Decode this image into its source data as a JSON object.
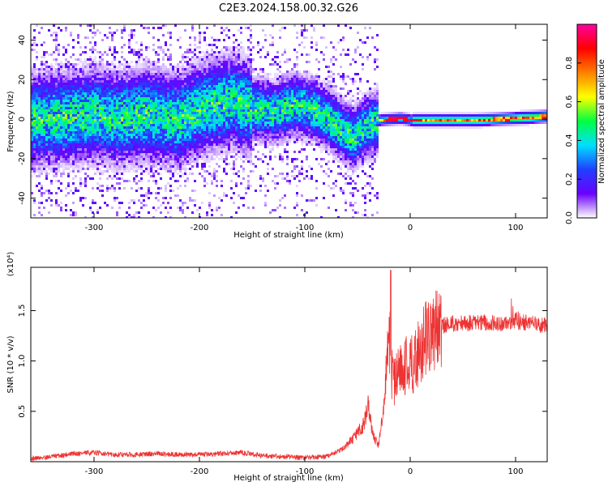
{
  "title": "C2E3.2024.158.00.32.G26",
  "colors": {
    "snr_line": "#ee3333",
    "spectrum_ridge": "#6a0cf0"
  },
  "chart_data": [
    {
      "type": "heatmap",
      "xlabel": "Height of straight line (km)",
      "ylabel": "Frequency (Hz)",
      "xlim": [
        -360,
        130
      ],
      "ylim": [
        -50,
        48
      ],
      "xticks": [
        -300,
        -200,
        -100,
        0,
        100
      ],
      "yticks": [
        -40,
        -20,
        0,
        20,
        40
      ],
      "ridge_x": [
        -360,
        -320,
        -300,
        -280,
        -250,
        -220,
        -200,
        -170,
        -150,
        -130,
        -110,
        -90,
        -70,
        -55,
        -45,
        -30,
        -10,
        0,
        30,
        60,
        100,
        130
      ],
      "ridge_freq": [
        0,
        2,
        3,
        1,
        3,
        0,
        6,
        10,
        6,
        4,
        8,
        5,
        -3,
        -9,
        -4,
        0,
        1,
        0,
        0,
        0,
        1,
        2
      ],
      "colorbar": {
        "label": "Normalized spectral amplitude",
        "range": [
          0,
          1
        ],
        "ticks": [
          0.0,
          0.2,
          0.4,
          0.6,
          0.8
        ],
        "tick_labels": [
          "0.0",
          "0.2",
          "0.4",
          "0.6",
          "0.8"
        ],
        "colormap": [
          "#ffffff",
          "#6a00ff",
          "#2040ff",
          "#00e0ff",
          "#00ff40",
          "#ffff00",
          "#ff8000",
          "#ff0000",
          "#ff00a0"
        ]
      }
    },
    {
      "type": "line",
      "xlabel": "Height of straight line (km)",
      "ylabel": "SNR (10 * v/v)",
      "yscale_label": "(x10⁴)",
      "xlim": [
        -360,
        130
      ],
      "ylim": [
        0,
        1.93
      ],
      "xticks": [
        -300,
        -200,
        -100,
        0,
        100
      ],
      "yticks": [
        0.5,
        1.0,
        1.5
      ],
      "ytick_labels": [
        "0.5",
        "1.0",
        "1.5"
      ],
      "x": [
        -360,
        -340,
        -320,
        -300,
        -280,
        -260,
        -240,
        -220,
        -200,
        -180,
        -160,
        -140,
        -120,
        -100,
        -80,
        -65,
        -55,
        -45,
        -40,
        -35,
        -30,
        -25,
        -20,
        -18,
        -15,
        -10,
        -5,
        0,
        5,
        10,
        20,
        30,
        40,
        60,
        80,
        95,
        100,
        110,
        120,
        130
      ],
      "y": [
        0.03,
        0.05,
        0.08,
        0.09,
        0.07,
        0.07,
        0.08,
        0.07,
        0.07,
        0.08,
        0.09,
        0.06,
        0.05,
        0.04,
        0.05,
        0.12,
        0.22,
        0.35,
        0.55,
        0.25,
        0.15,
        0.6,
        1.3,
        0.9,
        0.8,
        0.9,
        0.95,
        0.95,
        1.0,
        1.15,
        1.28,
        1.35,
        1.37,
        1.38,
        1.38,
        1.37,
        1.4,
        1.38,
        1.36,
        1.36
      ]
    }
  ]
}
